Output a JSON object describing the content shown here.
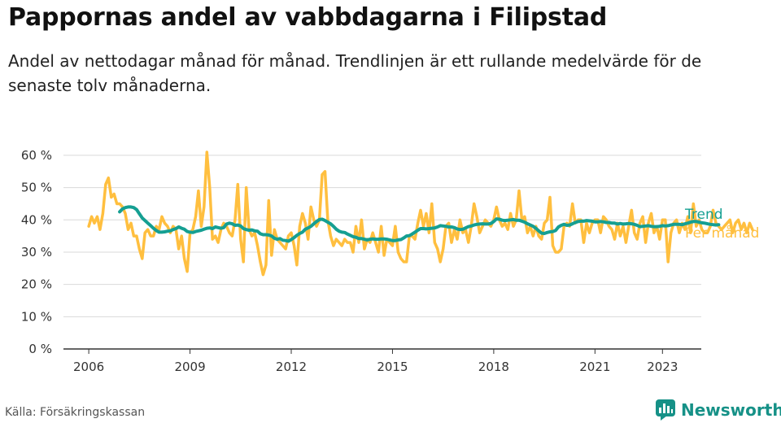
{
  "header": {
    "title": "Pappornas andel av vabbdagarna i Filipstad",
    "subtitle": "Andel av nettodagar månad för månad. Trendlinjen är ett rullande medelvärde för de senaste tolv månaderna."
  },
  "footer": {
    "source": "Källa: Försäkringskassan",
    "brand_name": "Newsworthy",
    "brand_icon": "newsworthy-logo-icon"
  },
  "colors": {
    "monthly": "#ffbf3f",
    "trend": "#159f92",
    "grid": "#d9d9d9",
    "axis": "#333333"
  },
  "chart_data": {
    "type": "line",
    "title": "Pappornas andel av vabbdagarna i Filipstad",
    "xlabel": "",
    "ylabel": "",
    "x_tick_labels": [
      "2006",
      "2009",
      "2012",
      "2015",
      "2018",
      "2021",
      "2023"
    ],
    "x_ticks": [
      2006,
      2009,
      2012,
      2015,
      2018,
      2021,
      2023
    ],
    "x_range": [
      2005.25,
      2024.15
    ],
    "y_ticks": [
      0,
      10,
      20,
      30,
      40,
      50,
      60
    ],
    "y_tick_labels": [
      "0 %",
      "10 %",
      "20 %",
      "30 %",
      "40 %",
      "50 %",
      "60 %"
    ],
    "ylim": [
      0,
      62
    ],
    "grid": true,
    "legend": "right, at end of lines",
    "series": [
      {
        "name": "Per månad",
        "x_start": "2006-01",
        "step": "month",
        "values": [
          38,
          41,
          39,
          41,
          37,
          42,
          51,
          53,
          47,
          48,
          45,
          45,
          44,
          42,
          37,
          39,
          35,
          35,
          31,
          28,
          36,
          37,
          35,
          35,
          38,
          37,
          41,
          39,
          38,
          36,
          38,
          37,
          31,
          35,
          28,
          24,
          36,
          37,
          41,
          49,
          38,
          44,
          61,
          50,
          34,
          35,
          33,
          37,
          39,
          38,
          36,
          35,
          40,
          51,
          34,
          27,
          50,
          37,
          35,
          36,
          32,
          27,
          23,
          26,
          46,
          29,
          37,
          34,
          33,
          32,
          31,
          35,
          36,
          32,
          26,
          38,
          42,
          39,
          34,
          44,
          40,
          38,
          40,
          54,
          55,
          40,
          35,
          32,
          34,
          33,
          32,
          34,
          33,
          33,
          30,
          38,
          33,
          40,
          31,
          34,
          33,
          36,
          33,
          30,
          38,
          29,
          34,
          33,
          32,
          38,
          30,
          28,
          27,
          27,
          35,
          35,
          34,
          39,
          43,
          38,
          42,
          36,
          45,
          33,
          31,
          27,
          31,
          38,
          39,
          33,
          37,
          34,
          40,
          36,
          37,
          33,
          38,
          45,
          41,
          36,
          38,
          40,
          39,
          38,
          40,
          44,
          40,
          38,
          39,
          37,
          42,
          38,
          40,
          49,
          40,
          41,
          36,
          38,
          35,
          38,
          35,
          34,
          39,
          40,
          47,
          32,
          30,
          30,
          31,
          38,
          39,
          38,
          45,
          39,
          40,
          40,
          33,
          39,
          36,
          39,
          40,
          40,
          36,
          41,
          40,
          38,
          37,
          34,
          39,
          35,
          38,
          33,
          38,
          43,
          36,
          34,
          39,
          41,
          33,
          39,
          42,
          36,
          38,
          34,
          40,
          40,
          27,
          36,
          39,
          40,
          36,
          39,
          37,
          41,
          36,
          45,
          38,
          40,
          37,
          36,
          36,
          38,
          43,
          39,
          38,
          37,
          38,
          39,
          40,
          36,
          39,
          40,
          37,
          39,
          36,
          39,
          37
        ]
      },
      {
        "name": "Trend",
        "x_start": "2006-12",
        "step": "month",
        "values": [
          42.5,
          43.4,
          43.8,
          44.0,
          44.0,
          43.8,
          43.2,
          41.9,
          40.6,
          39.8,
          39.0,
          38.2,
          37.4,
          36.7,
          36.2,
          36.2,
          36.3,
          36.5,
          36.6,
          37.0,
          37.3,
          37.8,
          37.4,
          37.1,
          36.4,
          36.2,
          36.1,
          36.4,
          36.6,
          36.8,
          37.1,
          37.4,
          37.5,
          37.3,
          37.8,
          37.6,
          37.4,
          37.6,
          38.7,
          39.0,
          38.8,
          38.3,
          38.4,
          38.1,
          37.3,
          37.0,
          36.8,
          36.9,
          36.6,
          36.5,
          35.7,
          35.4,
          35.4,
          35.3,
          35.0,
          34.3,
          34.0,
          34.2,
          33.7,
          33.6,
          33.4,
          33.9,
          34.5,
          35.2,
          35.8,
          36.2,
          37.1,
          37.5,
          38.0,
          38.8,
          39.5,
          40.1,
          40.2,
          39.8,
          39.3,
          38.8,
          38.0,
          37.1,
          36.5,
          36.2,
          36.1,
          35.6,
          35.2,
          34.8,
          34.6,
          34.2,
          34.2,
          34.0,
          33.8,
          34.0,
          34.1,
          34.0,
          34.0,
          34.1,
          34.1,
          34.0,
          33.8,
          33.6,
          33.6,
          33.8,
          33.9,
          34.4,
          35.0,
          35.1,
          35.6,
          36.2,
          36.8,
          37.3,
          37.3,
          37.2,
          37.3,
          37.4,
          37.5,
          37.8,
          38.2,
          38.1,
          38.0,
          37.8,
          37.8,
          37.6,
          37.2,
          37.0,
          37.1,
          37.5,
          37.9,
          38.1,
          38.4,
          38.6,
          38.7,
          38.8,
          38.7,
          38.7,
          38.9,
          39.5,
          40.3,
          40.2,
          39.9,
          39.8,
          39.9,
          40.0,
          40.1,
          39.9,
          39.9,
          39.6,
          39.3,
          38.8,
          38.4,
          38.0,
          37.4,
          36.6,
          35.9,
          35.8,
          36.1,
          36.3,
          36.4,
          36.7,
          37.8,
          38.3,
          38.6,
          38.3,
          38.4,
          38.8,
          39.2,
          39.5,
          39.6,
          39.6,
          39.8,
          39.7,
          39.6,
          39.4,
          39.4,
          39.5,
          39.4,
          39.2,
          39.2,
          39.0,
          39.0,
          38.7,
          38.9,
          38.7,
          38.8,
          38.9,
          38.8,
          38.6,
          38.3,
          37.9,
          38.0,
          38.1,
          38.2,
          38.0,
          37.9,
          37.9,
          38.0,
          38.2,
          38.1,
          38.2,
          38.4,
          38.6,
          38.6,
          38.6,
          38.5,
          38.8,
          39.0,
          39.3,
          39.5,
          39.5,
          39.3,
          39.1,
          39.0,
          38.8,
          38.6,
          38.5,
          38.4,
          38.5
        ]
      }
    ]
  }
}
